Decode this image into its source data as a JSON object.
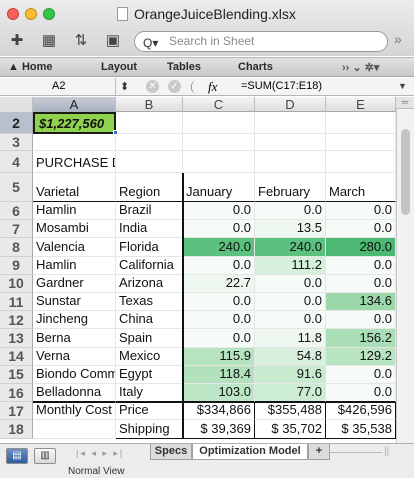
{
  "window": {
    "title": "OrangeJuiceBlending.xlsx"
  },
  "search": {
    "placeholder": "Search in Sheet"
  },
  "ribbon": {
    "tabs": [
      "Home",
      "Layout",
      "Tables",
      "Charts"
    ]
  },
  "formula_bar": {
    "name_box": "A2",
    "fx": "fx",
    "formula": "=SUM(C17:E18)"
  },
  "columns": [
    "A",
    "B",
    "C",
    "D",
    "E"
  ],
  "rows": [
    {
      "n": "2",
      "cells": [
        "$1,227,560",
        "",
        "",
        "",
        ""
      ]
    },
    {
      "n": "3",
      "cells": [
        "",
        "",
        "",
        "",
        ""
      ]
    },
    {
      "n": "4",
      "cells": [
        "PURCHASE DECISIONS",
        "",
        "",
        "",
        ""
      ]
    },
    {
      "n": "5",
      "cells": [
        "Varietal",
        "Region",
        "January",
        "February",
        "March"
      ]
    },
    {
      "n": "6",
      "cells": [
        "Hamlin",
        "Brazil",
        "0.0",
        "0.0",
        "0.0"
      ]
    },
    {
      "n": "7",
      "cells": [
        "Mosambi",
        "India",
        "0.0",
        "13.5",
        "0.0"
      ]
    },
    {
      "n": "8",
      "cells": [
        "Valencia",
        "Florida",
        "240.0",
        "240.0",
        "280.0"
      ]
    },
    {
      "n": "9",
      "cells": [
        "Hamlin",
        "California",
        "0.0",
        "111.2",
        "0.0"
      ]
    },
    {
      "n": "10",
      "cells": [
        "Gardner",
        "Arizona",
        "22.7",
        "0.0",
        "0.0"
      ]
    },
    {
      "n": "11",
      "cells": [
        "Sunstar",
        "Texas",
        "0.0",
        "0.0",
        "134.6"
      ]
    },
    {
      "n": "12",
      "cells": [
        "Jincheng",
        "China",
        "0.0",
        "0.0",
        "0.0"
      ]
    },
    {
      "n": "13",
      "cells": [
        "Berna",
        "Spain",
        "0.0",
        "11.8",
        "156.2"
      ]
    },
    {
      "n": "14",
      "cells": [
        "Verna",
        "Mexico",
        "115.9",
        "54.8",
        "129.2"
      ]
    },
    {
      "n": "15",
      "cells": [
        "Biondo Comm",
        "Egypt",
        "118.4",
        "91.6",
        "0.0"
      ]
    },
    {
      "n": "16",
      "cells": [
        "Belladonna",
        "Italy",
        "103.0",
        "77.0",
        "0.0"
      ]
    },
    {
      "n": "17",
      "cells": [
        "Monthly Cost",
        "Price",
        "$334,866",
        "$355,488",
        "$426,596"
      ]
    },
    {
      "n": "18",
      "cells": [
        "",
        "Shipping",
        "$ 39,369",
        "$ 35,702",
        "$ 35,538"
      ]
    }
  ],
  "sheets": {
    "tabs": [
      "Specs",
      "Optimization Model",
      "+"
    ],
    "active": "Optimization Model"
  },
  "status_bar": {
    "view": "Normal View"
  },
  "colors": {
    "selected_cell_fill": "#8fd24e",
    "heat_strong": "#5cc17f",
    "heat_medium": "#9bd9ab",
    "heat_light": "#d7f0dd",
    "heat_faint": "#eef8f0"
  }
}
